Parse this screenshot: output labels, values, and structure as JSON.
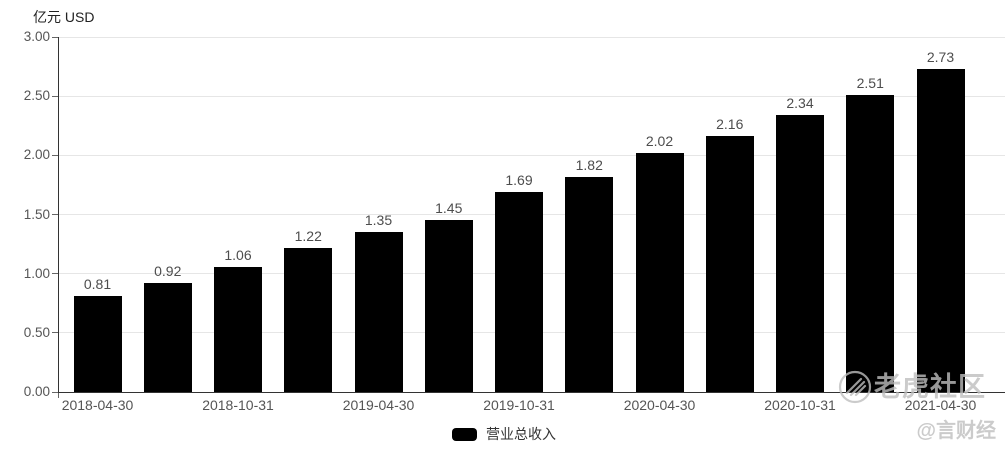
{
  "chart_data": {
    "type": "bar",
    "unit": "亿元 USD",
    "series": [
      {
        "name": "营业总收入",
        "values": [
          0.81,
          0.92,
          1.06,
          1.22,
          1.35,
          1.45,
          1.69,
          1.82,
          2.02,
          2.16,
          2.34,
          2.51,
          2.73
        ]
      }
    ],
    "value_labels": [
      "0.81",
      "0.92",
      "1.06",
      "1.22",
      "1.35",
      "1.45",
      "1.69",
      "1.82",
      "2.02",
      "2.16",
      "2.34",
      "2.51",
      "2.73"
    ],
    "x_tick_labels": [
      "2018-04-30",
      "2018-10-31",
      "2019-04-30",
      "2019-10-31",
      "2020-04-30",
      "2020-10-31",
      "2021-04-30"
    ],
    "x_tick_every": 2,
    "y_ticks": [
      0.0,
      0.5,
      1.0,
      1.5,
      2.0,
      2.5,
      3.0
    ],
    "y_tick_labels": [
      "0.00",
      "0.50",
      "1.00",
      "1.50",
      "2.00",
      "2.50",
      "3.00"
    ],
    "ylim": [
      0,
      3.0
    ],
    "grid": true,
    "legend_position": "bottom"
  },
  "colors": {
    "bar": "#000000",
    "grid": "#e6e6e6",
    "axis": "#333333",
    "tick_label": "#555555",
    "value_label": "#4d4d4d",
    "legend_text": "#333333",
    "watermark": "#bebebe",
    "background": "#ffffff"
  },
  "watermark": {
    "brand": "老虎社区",
    "handle": "@言财经",
    "icon": "tiger-circle-icon"
  }
}
